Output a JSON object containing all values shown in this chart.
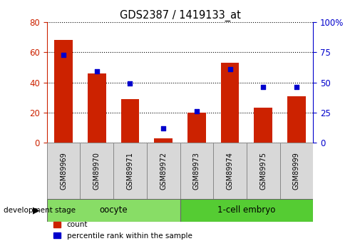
{
  "title": "GDS2387 / 1419133_at",
  "samples": [
    "GSM89969",
    "GSM89970",
    "GSM89971",
    "GSM89972",
    "GSM89973",
    "GSM89974",
    "GSM89975",
    "GSM89999"
  ],
  "count_values": [
    68,
    46,
    29,
    3,
    20,
    53,
    23,
    31
  ],
  "percentile_values": [
    73,
    59,
    49,
    12,
    26,
    61,
    46,
    46
  ],
  "count_color": "#cc2200",
  "percentile_color": "#0000cc",
  "group_labels": [
    "oocyte",
    "1-cell embryo"
  ],
  "group_ranges": [
    [
      0,
      4
    ],
    [
      4,
      8
    ]
  ],
  "group_color_oocyte": "#88dd66",
  "group_color_embryo": "#55cc33",
  "left_ylim": [
    0,
    80
  ],
  "right_ylim": [
    0,
    100
  ],
  "left_yticks": [
    0,
    20,
    40,
    60,
    80
  ],
  "right_yticks": [
    0,
    25,
    50,
    75,
    100
  ],
  "right_yticklabels": [
    "0",
    "25",
    "50",
    "75",
    "100%"
  ],
  "background_color": "#ffffff",
  "bar_width": 0.55,
  "dev_stage_label": "development stage"
}
